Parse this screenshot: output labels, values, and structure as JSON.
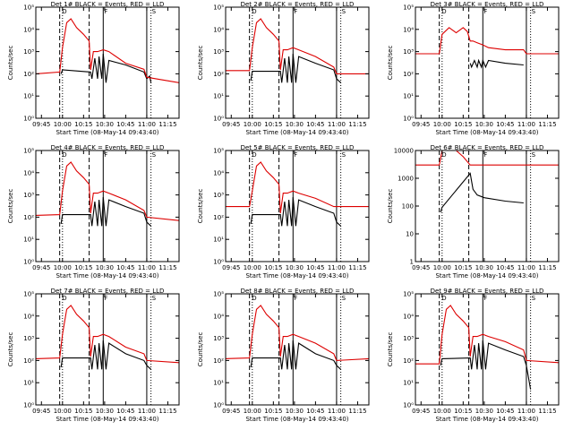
{
  "chart_data": [
    {
      "type": "line",
      "title": "Det 1# BLACK = Events, RED = LLD",
      "xlabel": "Start Time (08-May-14 09:43:40)",
      "ylabel": "Counts/sec",
      "yscale": "log",
      "ylim": [
        1,
        100000
      ],
      "yticks": [
        "10⁰",
        "10¹",
        "10²",
        "10³",
        "10⁴",
        "10⁵"
      ],
      "xlim": [
        "09:41",
        "11:23"
      ],
      "xticks": [
        "09:45",
        "10:00",
        "10:15",
        "10:30",
        "10:45",
        "11:00",
        "11:15"
      ],
      "annotations": [
        "D",
        "F",
        "S"
      ],
      "series": [
        {
          "name": "Events",
          "color": "#000000",
          "x": [
            "09:59",
            "10:00",
            "10:20",
            "10:21",
            "10:23",
            "10:25",
            "10:26",
            "10:28",
            "10:29",
            "10:31",
            "10:33",
            "10:45",
            "10:58",
            "11:00",
            "11:02",
            "11:03"
          ],
          "y": [
            100,
            150,
            120,
            60,
            500,
            60,
            600,
            60,
            800,
            40,
            400,
            250,
            120,
            60,
            80,
            40
          ]
        },
        {
          "name": "LLD",
          "color": "#dd0000",
          "x": [
            "09:41",
            "09:58",
            "10:00",
            "10:03",
            "10:06",
            "10:10",
            "10:15",
            "10:19",
            "10:20",
            "10:22",
            "10:25",
            "10:29",
            "10:33",
            "10:45",
            "10:58",
            "11:00",
            "11:23"
          ],
          "y": [
            100,
            120,
            1500,
            20000,
            30000,
            12000,
            6000,
            3000,
            150,
            1000,
            1000,
            1200,
            1000,
            300,
            160,
            70,
            40
          ]
        }
      ]
    },
    {
      "type": "line",
      "title": "Det 2# BLACK = Events, RED = LLD",
      "xlabel": "Start Time (08-May-14 09:43:40)",
      "ylabel": "Counts/sec",
      "yscale": "log",
      "ylim": [
        1,
        100000
      ],
      "yticks": [
        "10⁰",
        "10¹",
        "10²",
        "10³",
        "10⁴",
        "10⁵"
      ],
      "xlim": [
        "09:41",
        "11:23"
      ],
      "xticks": [
        "09:45",
        "10:00",
        "10:15",
        "10:30",
        "10:45",
        "11:00",
        "11:15"
      ],
      "annotations": [
        "D",
        "F",
        "S"
      ],
      "series": [
        {
          "name": "Events",
          "color": "#000000",
          "x": [
            "09:59",
            "10:00",
            "10:20",
            "10:21",
            "10:23",
            "10:25",
            "10:26",
            "10:28",
            "10:29",
            "10:31",
            "10:33",
            "10:45",
            "10:58",
            "11:00",
            "11:03"
          ],
          "y": [
            50,
            130,
            130,
            40,
            500,
            40,
            600,
            40,
            800,
            40,
            600,
            300,
            150,
            60,
            40
          ]
        },
        {
          "name": "LLD",
          "color": "#dd0000",
          "x": [
            "09:41",
            "09:58",
            "10:00",
            "10:03",
            "10:06",
            "10:10",
            "10:15",
            "10:19",
            "10:20",
            "10:22",
            "10:25",
            "10:29",
            "10:33",
            "10:45",
            "10:58",
            "11:00",
            "11:23"
          ],
          "y": [
            140,
            140,
            1500,
            20000,
            30000,
            12000,
            6000,
            3000,
            150,
            1200,
            1200,
            1500,
            1200,
            600,
            200,
            100,
            100
          ]
        }
      ]
    },
    {
      "type": "line",
      "title": "Det 3# BLACK = Events, RED = LLD",
      "xlabel": "Start Time (08-May-14 09:43:40)",
      "ylabel": "Counts/sec",
      "yscale": "log",
      "ylim": [
        1,
        100000
      ],
      "yticks": [
        "10⁰",
        "10¹",
        "10²",
        "10³",
        "10⁴",
        "10⁵"
      ],
      "xlim": [
        "09:41",
        "11:23"
      ],
      "xticks": [
        "09:45",
        "10:00",
        "10:15",
        "10:30",
        "10:45",
        "11:00",
        "11:15"
      ],
      "annotations": [
        "D",
        "F",
        "S"
      ],
      "series": [
        {
          "name": "Events",
          "color": "#000000",
          "x": [
            "10:20",
            "10:21",
            "10:23",
            "10:25",
            "10:26",
            "10:28",
            "10:29",
            "10:31",
            "10:33",
            "10:45",
            "10:58"
          ],
          "y": [
            300,
            200,
            400,
            200,
            400,
            200,
            400,
            200,
            400,
            300,
            250
          ]
        },
        {
          "name": "LLD",
          "color": "#dd0000",
          "x": [
            "09:41",
            "09:58",
            "10:00",
            "10:05",
            "10:10",
            "10:15",
            "10:18",
            "10:20",
            "10:22",
            "10:25",
            "10:29",
            "10:33",
            "10:45",
            "10:58",
            "11:00",
            "11:23"
          ],
          "y": [
            800,
            800,
            6000,
            12000,
            7000,
            12000,
            8000,
            3000,
            3000,
            2500,
            2000,
            1500,
            1200,
            1200,
            800,
            800
          ]
        }
      ]
    },
    {
      "type": "line",
      "title": "Det 4# BLACK = Events, RED = LLD",
      "xlabel": "Start Time (08-May-14 09:43:40)",
      "ylabel": "Counts/sec",
      "yscale": "log",
      "ylim": [
        1,
        100000
      ],
      "yticks": [
        "10⁰",
        "10¹",
        "10²",
        "10³",
        "10⁴",
        "10⁵"
      ],
      "xlim": [
        "09:41",
        "11:23"
      ],
      "xticks": [
        "09:45",
        "10:00",
        "10:15",
        "10:30",
        "10:45",
        "11:00",
        "11:15"
      ],
      "annotations": [
        "D",
        "F",
        "S"
      ],
      "series": [
        {
          "name": "Events",
          "color": "#000000",
          "x": [
            "09:59",
            "10:00",
            "10:20",
            "10:21",
            "10:23",
            "10:25",
            "10:26",
            "10:28",
            "10:29",
            "10:31",
            "10:33",
            "10:45",
            "10:58",
            "11:00",
            "11:03"
          ],
          "y": [
            50,
            130,
            130,
            40,
            500,
            40,
            600,
            40,
            800,
            40,
            600,
            300,
            150,
            60,
            40
          ]
        },
        {
          "name": "LLD",
          "color": "#dd0000",
          "x": [
            "09:41",
            "09:58",
            "10:00",
            "10:03",
            "10:06",
            "10:10",
            "10:15",
            "10:19",
            "10:20",
            "10:22",
            "10:25",
            "10:29",
            "10:33",
            "10:45",
            "10:58",
            "11:00",
            "11:23"
          ],
          "y": [
            120,
            130,
            1500,
            20000,
            30000,
            12000,
            6000,
            3000,
            150,
            1200,
            1200,
            1500,
            1200,
            600,
            200,
            100,
            70
          ]
        }
      ]
    },
    {
      "type": "line",
      "title": "Det 5# BLACK = Events, RED = LLD",
      "xlabel": "Start Time (08-May-14 09:43:40)",
      "ylabel": "Counts/sec",
      "yscale": "log",
      "ylim": [
        1,
        100000
      ],
      "yticks": [
        "10⁰",
        "10¹",
        "10²",
        "10³",
        "10⁴",
        "10⁵"
      ],
      "xlim": [
        "09:41",
        "11:23"
      ],
      "xticks": [
        "09:45",
        "10:00",
        "10:15",
        "10:30",
        "10:45",
        "11:00",
        "11:15"
      ],
      "annotations": [
        "D",
        "F",
        "S"
      ],
      "series": [
        {
          "name": "Events",
          "color": "#000000",
          "x": [
            "09:59",
            "10:00",
            "10:20",
            "10:21",
            "10:23",
            "10:25",
            "10:26",
            "10:28",
            "10:29",
            "10:31",
            "10:33",
            "10:45",
            "10:58",
            "11:00",
            "11:03"
          ],
          "y": [
            50,
            130,
            130,
            40,
            500,
            40,
            600,
            40,
            800,
            40,
            600,
            300,
            150,
            60,
            40
          ]
        },
        {
          "name": "LLD",
          "color": "#dd0000",
          "x": [
            "09:41",
            "09:58",
            "10:00",
            "10:03",
            "10:06",
            "10:10",
            "10:15",
            "10:19",
            "10:20",
            "10:22",
            "10:25",
            "10:29",
            "10:33",
            "10:45",
            "10:58",
            "11:00",
            "11:23"
          ],
          "y": [
            300,
            300,
            1500,
            20000,
            30000,
            12000,
            6000,
            3000,
            150,
            1200,
            1200,
            1500,
            1200,
            700,
            300,
            300,
            300
          ]
        }
      ]
    },
    {
      "type": "line",
      "title": "Det 6# BLACK = Events, RED = LLD",
      "xlabel": "Start Time (08-May-14 09:43:40)",
      "ylabel": "Counts/sec",
      "yscale": "log",
      "ylim": [
        1,
        10000
      ],
      "yticks": [
        "1",
        "10",
        "100",
        "1000",
        "10000"
      ],
      "xlim": [
        "09:41",
        "11:23"
      ],
      "xticks": [
        "09:45",
        "10:00",
        "10:15",
        "10:30",
        "10:45",
        "11:00",
        "11:15"
      ],
      "annotations": [
        "D",
        "F",
        "S"
      ],
      "series": [
        {
          "name": "Events",
          "color": "#000000",
          "x": [
            "09:59",
            "10:00",
            "10:20",
            "10:22",
            "10:25",
            "10:30",
            "10:45",
            "10:58"
          ],
          "y": [
            60,
            90,
            1500,
            400,
            250,
            200,
            150,
            130
          ]
        },
        {
          "name": "LLD",
          "color": "#dd0000",
          "x": [
            "09:41",
            "09:58",
            "10:00",
            "10:10",
            "10:15",
            "10:20",
            "10:25",
            "10:45",
            "10:58",
            "11:00",
            "11:23"
          ],
          "y": [
            3000,
            3000,
            10000,
            10000,
            6000,
            3000,
            3000,
            3000,
            3000,
            3000,
            3000
          ]
        }
      ]
    },
    {
      "type": "line",
      "title": "Det 7# BLACK = Events, RED = LLD",
      "xlabel": "Start Time (08-May-14 09:43:40)",
      "ylabel": "Counts/sec",
      "yscale": "log",
      "ylim": [
        1,
        100000
      ],
      "yticks": [
        "10⁰",
        "10¹",
        "10²",
        "10³",
        "10⁴",
        "10⁵"
      ],
      "xlim": [
        "09:41",
        "11:23"
      ],
      "xticks": [
        "09:45",
        "10:00",
        "10:15",
        "10:30",
        "10:45",
        "11:00",
        "11:15"
      ],
      "annotations": [
        "D",
        "F",
        "S"
      ],
      "series": [
        {
          "name": "Events",
          "color": "#000000",
          "x": [
            "09:59",
            "10:00",
            "10:20",
            "10:21",
            "10:23",
            "10:25",
            "10:26",
            "10:28",
            "10:29",
            "10:31",
            "10:33",
            "10:45",
            "10:58",
            "11:00",
            "11:03"
          ],
          "y": [
            50,
            130,
            130,
            40,
            500,
            40,
            600,
            40,
            800,
            40,
            600,
            200,
            100,
            60,
            40
          ]
        },
        {
          "name": "LLD",
          "color": "#dd0000",
          "x": [
            "09:41",
            "09:58",
            "10:00",
            "10:03",
            "10:06",
            "10:10",
            "10:15",
            "10:19",
            "10:20",
            "10:22",
            "10:25",
            "10:29",
            "10:33",
            "10:45",
            "10:58",
            "11:00",
            "11:23"
          ],
          "y": [
            120,
            130,
            1500,
            20000,
            30000,
            12000,
            6000,
            3000,
            150,
            1200,
            1200,
            1500,
            1200,
            400,
            200,
            100,
            80
          ]
        }
      ]
    },
    {
      "type": "line",
      "title": "Det 8# BLACK = Events, RED = LLD",
      "xlabel": "Start Time (08-May-14 09:43:40)",
      "ylabel": "Counts/sec",
      "yscale": "log",
      "ylim": [
        1,
        100000
      ],
      "yticks": [
        "10⁰",
        "10¹",
        "10²",
        "10³",
        "10⁴",
        "10⁵"
      ],
      "xlim": [
        "09:41",
        "11:23"
      ],
      "xticks": [
        "09:45",
        "10:00",
        "10:15",
        "10:30",
        "10:45",
        "11:00",
        "11:15"
      ],
      "annotations": [
        "D",
        "F",
        "S"
      ],
      "series": [
        {
          "name": "Events",
          "color": "#000000",
          "x": [
            "09:59",
            "10:00",
            "10:20",
            "10:21",
            "10:23",
            "10:25",
            "10:26",
            "10:28",
            "10:29",
            "10:31",
            "10:33",
            "10:45",
            "10:58",
            "11:00",
            "11:03"
          ],
          "y": [
            50,
            130,
            130,
            40,
            500,
            40,
            600,
            40,
            800,
            40,
            600,
            200,
            100,
            60,
            40
          ]
        },
        {
          "name": "LLD",
          "color": "#dd0000",
          "x": [
            "09:41",
            "09:58",
            "10:00",
            "10:03",
            "10:06",
            "10:10",
            "10:15",
            "10:19",
            "10:20",
            "10:22",
            "10:25",
            "10:29",
            "10:33",
            "10:45",
            "10:58",
            "11:00",
            "11:23"
          ],
          "y": [
            120,
            130,
            1500,
            20000,
            30000,
            12000,
            6000,
            3000,
            150,
            1200,
            1200,
            1500,
            1200,
            600,
            200,
            100,
            120
          ]
        }
      ]
    },
    {
      "type": "line",
      "title": "Det 9# BLACK = Events, RED = LLD",
      "xlabel": "Start Time (08-May-14 09:43:40)",
      "ylabel": "Counts/sec",
      "yscale": "log",
      "ylim": [
        1,
        100000
      ],
      "yticks": [
        "10⁰",
        "10¹",
        "10²",
        "10³",
        "10⁴",
        "10⁵"
      ],
      "xlim": [
        "09:41",
        "11:23"
      ],
      "xticks": [
        "09:45",
        "10:00",
        "10:15",
        "10:30",
        "10:45",
        "11:00",
        "11:15"
      ],
      "annotations": [
        "D",
        "F",
        "S"
      ],
      "series": [
        {
          "name": "Events",
          "color": "#000000",
          "x": [
            "09:59",
            "10:00",
            "10:20",
            "10:21",
            "10:23",
            "10:25",
            "10:26",
            "10:28",
            "10:29",
            "10:31",
            "10:33",
            "10:45",
            "10:58",
            "11:00",
            "11:03"
          ],
          "y": [
            60,
            120,
            130,
            40,
            500,
            40,
            600,
            40,
            800,
            40,
            600,
            300,
            150,
            60,
            5
          ]
        },
        {
          "name": "LLD",
          "color": "#dd0000",
          "x": [
            "09:41",
            "09:58",
            "10:00",
            "10:03",
            "10:06",
            "10:10",
            "10:15",
            "10:19",
            "10:20",
            "10:22",
            "10:25",
            "10:29",
            "10:33",
            "10:45",
            "10:58",
            "11:00",
            "11:23"
          ],
          "y": [
            70,
            70,
            1500,
            20000,
            30000,
            12000,
            6000,
            3000,
            150,
            1200,
            1200,
            1500,
            1200,
            700,
            300,
            100,
            80
          ]
        }
      ]
    }
  ]
}
